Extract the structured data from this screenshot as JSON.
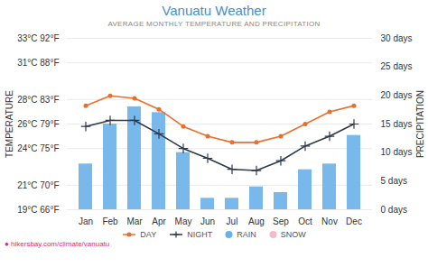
{
  "chart_data": {
    "type": "bar",
    "title": "Vanuatu Weather",
    "subtitle": "AVERAGE MONTHLY TEMPERATURE AND PRECIPITATION",
    "categories": [
      "Jan",
      "Feb",
      "Mar",
      "Apr",
      "May",
      "Jun",
      "Jul",
      "Aug",
      "Sep",
      "Oct",
      "Nov",
      "Dec"
    ],
    "series": [
      {
        "name": "DAY",
        "type": "line",
        "color": "#e8702a",
        "marker": "circle",
        "values": [
          27.5,
          28.3,
          28.1,
          27.2,
          25.8,
          25.0,
          24.5,
          24.5,
          25.0,
          26.0,
          27.0,
          27.5
        ]
      },
      {
        "name": "NIGHT",
        "type": "line",
        "color": "#2d3a4a",
        "marker": "plus",
        "values": [
          25.8,
          26.3,
          26.3,
          25.2,
          24.0,
          23.2,
          22.3,
          22.2,
          23.0,
          24.2,
          25.0,
          26.0
        ]
      },
      {
        "name": "RAIN",
        "type": "bar",
        "axis": "y2",
        "color": "#6ab0e8",
        "values": [
          8,
          15,
          18,
          17,
          10,
          2,
          2,
          4,
          3,
          7,
          8,
          13
        ]
      },
      {
        "name": "SNOW",
        "type": "bar",
        "axis": "y2",
        "color": "#f5b8cc",
        "values": [
          null,
          null,
          null,
          null,
          null,
          null,
          null,
          null,
          null,
          null,
          null,
          null
        ]
      }
    ],
    "ylabel": "TEMPERATURE",
    "y2label": "PRECIPITATION",
    "ylim": [
      19,
      33
    ],
    "yticks": [
      {
        "value": 19,
        "label": "19°C 66°F"
      },
      {
        "value": 21,
        "label": "21°C 70°F"
      },
      {
        "value": 24,
        "label": "24°C 75°F"
      },
      {
        "value": 26,
        "label": "26°C 79°F"
      },
      {
        "value": 28,
        "label": "28°C 83°F"
      },
      {
        "value": 31,
        "label": "31°C 88°F"
      },
      {
        "value": 33,
        "label": "33°C 92°F"
      }
    ],
    "y2lim": [
      0,
      30
    ],
    "y2ticks": [
      {
        "value": 0,
        "label": "0 days"
      },
      {
        "value": 5,
        "label": "5 days"
      },
      {
        "value": 10,
        "label": "10 days"
      },
      {
        "value": 15,
        "label": "15 days"
      },
      {
        "value": 20,
        "label": "20 days"
      },
      {
        "value": 25,
        "label": "25 days"
      },
      {
        "value": 30,
        "label": "30 days"
      }
    ],
    "grid": true,
    "legend": "bottom",
    "annotations": [
      "● hikersbay.com/climate/vanuatu"
    ]
  }
}
